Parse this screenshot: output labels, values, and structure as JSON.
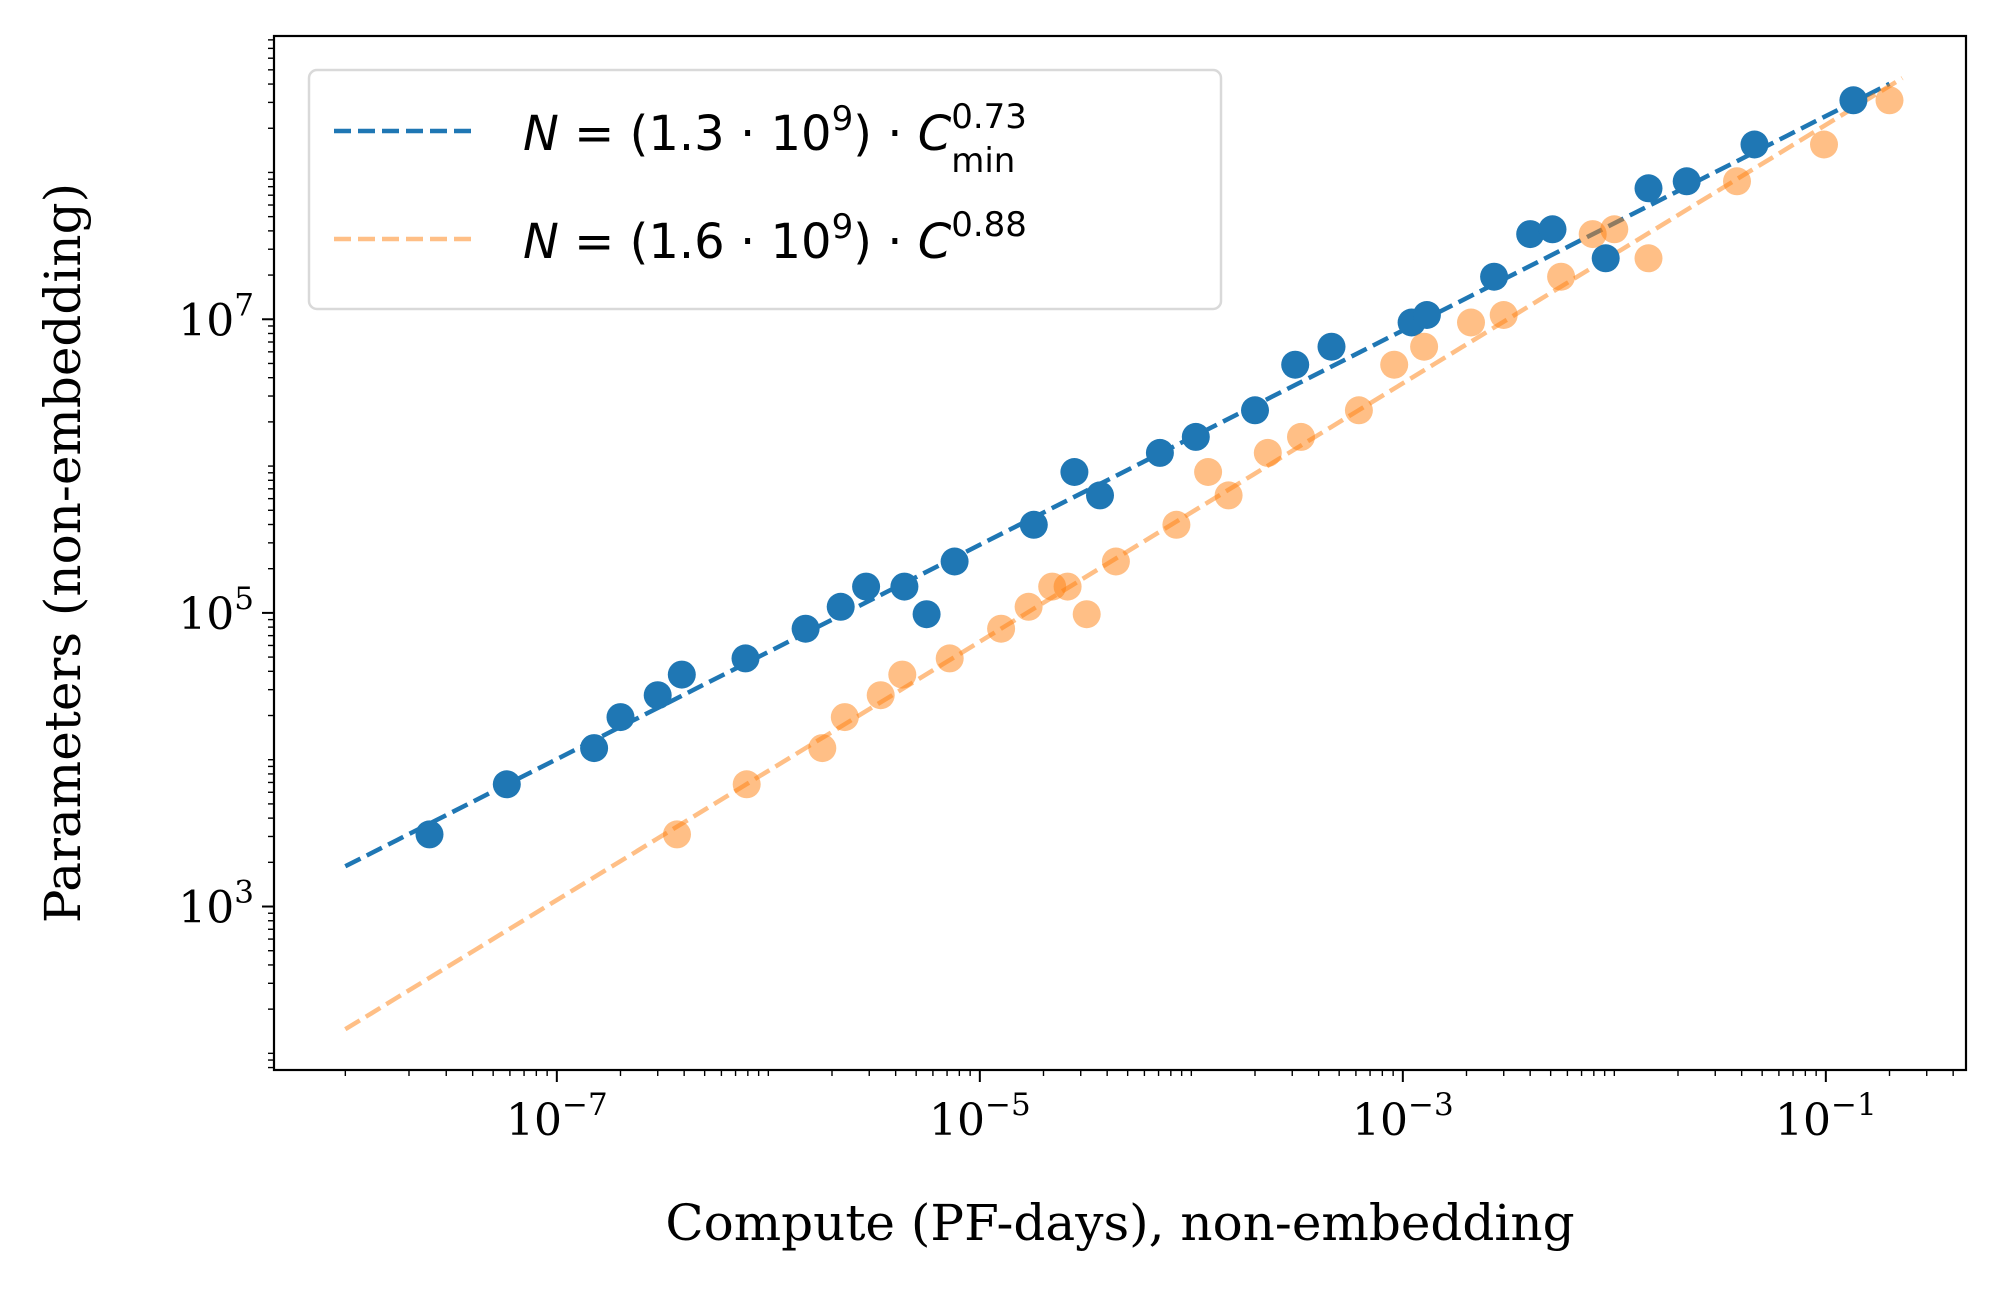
{
  "chart_data": {
    "type": "scatter",
    "title": "",
    "xlabel": "Compute (PF-days), non-embedding",
    "ylabel": "Parameters (non-embedding)",
    "xscale": "log",
    "yscale": "log",
    "xlim": [
      4.6e-09,
      0.46
    ],
    "ylim": [
      77,
      850000000.0
    ],
    "grid": false,
    "legend_position": "top-left",
    "x_ticks": [
      {
        "base": "10",
        "exp": "−7",
        "value": 1e-07
      },
      {
        "base": "10",
        "exp": "−5",
        "value": 1e-05
      },
      {
        "base": "10",
        "exp": "−3",
        "value": 0.001
      },
      {
        "base": "10",
        "exp": "−1",
        "value": 0.1
      }
    ],
    "y_ticks": [
      {
        "base": "10",
        "exp": "3",
        "value": 1000.0
      },
      {
        "base": "10",
        "exp": "5",
        "value": 100000.0
      },
      {
        "base": "10",
        "exp": "7",
        "value": 10000000.0
      }
    ],
    "series": [
      {
        "kind": "points",
        "color": "#1f77b4",
        "opacity": 1,
        "x": [
          2.5e-08,
          5.8e-08,
          1.5e-07,
          2e-07,
          3e-07,
          3.9e-07,
          7.8e-07,
          1.5e-06,
          2.2e-06,
          2.9e-06,
          4.4e-06,
          5.6e-06,
          7.6e-06,
          1.8e-05,
          2.8e-05,
          3.7e-05,
          7.1e-05,
          0.000105,
          0.0002,
          0.00031,
          0.00046,
          0.0011,
          0.0013,
          0.0027,
          0.004,
          0.0051,
          0.0091,
          0.0145,
          0.022,
          0.046,
          0.135
        ],
        "y": [
          3100,
          6800,
          12000,
          19500,
          27500,
          38000,
          49000,
          78000,
          110000,
          151000,
          151000,
          98000,
          224000,
          398000,
          912000,
          631000,
          1230000.0,
          1580000.0,
          2400000.0,
          4900000.0,
          6500000.0,
          9500000.0,
          10700000.0,
          19500000.0,
          38000000.0,
          41000000.0,
          26000000.0,
          78000000.0,
          87000000.0,
          155000000.0,
          310000000.0
        ]
      },
      {
        "kind": "points",
        "color": "#ff7f0e",
        "opacity": 0.5,
        "x": [
          3.7e-07,
          7.9e-07,
          1.8e-06,
          2.3e-06,
          3.4e-06,
          4.3e-06,
          7.2e-06,
          1.26e-05,
          1.7e-05,
          2.2e-05,
          2.6e-05,
          3.2e-05,
          4.4e-05,
          8.5e-05,
          0.00012,
          0.00015,
          0.00023,
          0.00033,
          0.00062,
          0.00091,
          0.00126,
          0.0021,
          0.003,
          0.0056,
          0.0079,
          0.01,
          0.0145,
          0.038,
          0.098,
          0.2
        ],
        "y": [
          3100,
          6800,
          12000,
          19500,
          27500,
          38000,
          49000,
          78000,
          110000,
          151000,
          151000,
          98000,
          224000,
          398000,
          912000,
          631000,
          1230000.0,
          1580000.0,
          2400000.0,
          4900000.0,
          6500000.0,
          9500000.0,
          10700000.0,
          19500000.0,
          38000000.0,
          41000000.0,
          26000000.0,
          87000000.0,
          155000000.0,
          310000000.0
        ]
      },
      {
        "kind": "fit",
        "name": "N = (1.3 · 10^9) · C_min^0.73",
        "label": {
          "lhs": "N",
          "eq": " = (1.3 · 10",
          "exp9": "9",
          "mid": ") · ",
          "C": "C",
          "sup": "0.73",
          "sub": "min"
        },
        "color": "#1f77b4",
        "opacity": 1,
        "coef": 1300000000.0,
        "exponent": 0.73,
        "x_range": [
          1e-08,
          0.2
        ]
      },
      {
        "kind": "fit",
        "name": "N = (1.6 · 10^9) · C^0.88",
        "label": {
          "lhs": "N",
          "eq": " = (1.6 · 10",
          "exp9": "9",
          "mid": ") · ",
          "C": "C",
          "sup": "0.88",
          "sub": ""
        },
        "color": "#ff7f0e",
        "opacity": 0.5,
        "coef": 1600000000.0,
        "exponent": 0.88,
        "x_range": [
          1e-08,
          0.23
        ]
      }
    ]
  }
}
